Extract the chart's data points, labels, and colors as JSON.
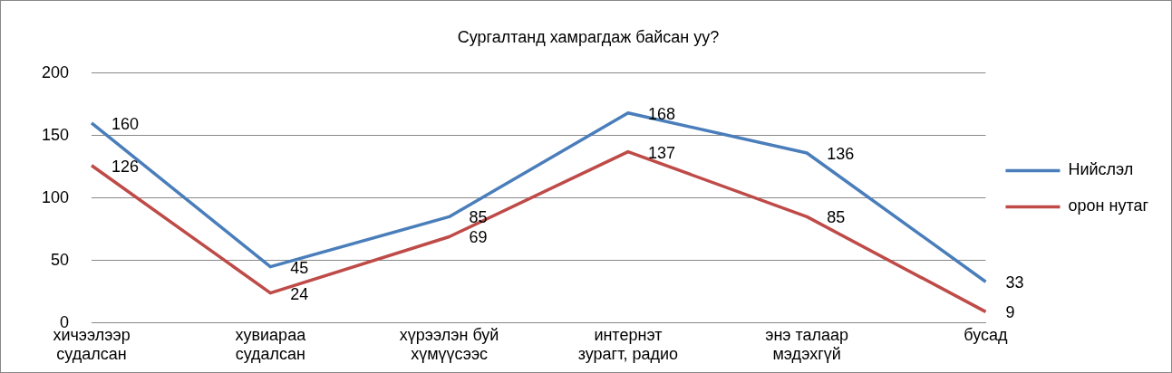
{
  "chart_data": {
    "type": "line",
    "title": "Сургалтанд хамрагдаж байсан уу?",
    "categories": [
      "хичээлээр судалсан",
      "хувиараа судалсан",
      "хүрээлэн буй хүмүүсээс",
      "интернэт зурагт, радио",
      "энэ талаар мэдэхгүй",
      "бусад"
    ],
    "series": [
      {
        "name": "Нийслэл",
        "color": "#4a7ebb",
        "values": [
          160,
          45,
          85,
          168,
          136,
          33
        ]
      },
      {
        "name": "орон нутаг",
        "color": "#be4b48",
        "values": [
          126,
          24,
          69,
          137,
          85,
          9
        ]
      }
    ],
    "ylim": [
      0,
      200
    ],
    "yticks": [
      0,
      50,
      100,
      150,
      200
    ],
    "grid": "y",
    "legend": "right",
    "data_labels": true,
    "marker": "none"
  }
}
